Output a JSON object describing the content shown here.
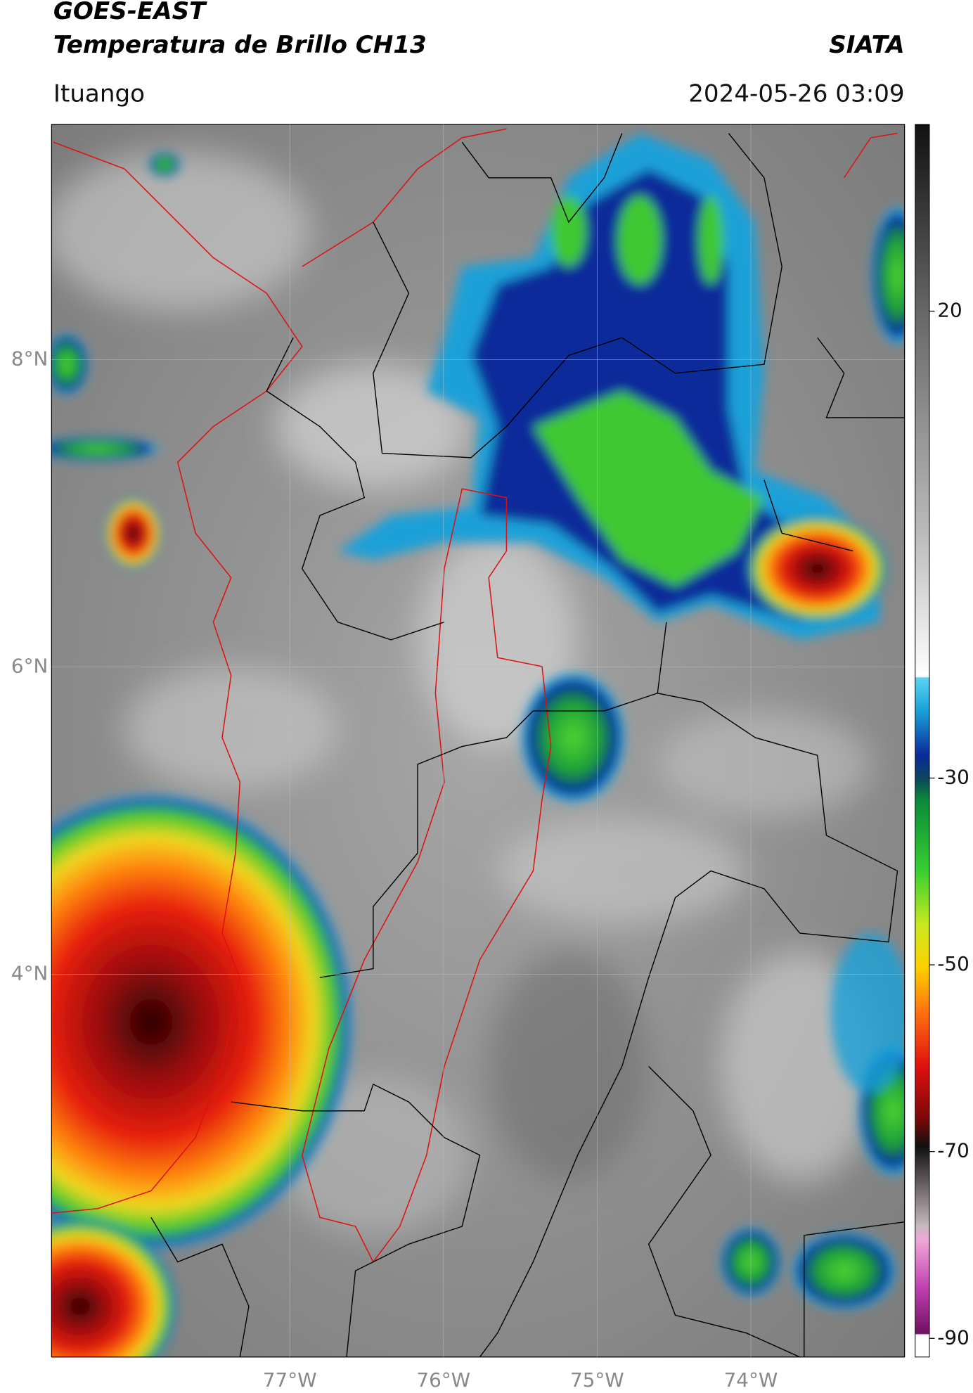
{
  "header": {
    "title_line1": "GOES-EAST",
    "title_line2": "Temperatura de Brillo CH13",
    "organization": "SIATA",
    "location": "Ituango",
    "timestamp": "2024-05-26 03:09"
  },
  "map": {
    "xlim": [
      -78.55,
      -73.0
    ],
    "ylim": [
      1.51,
      9.53
    ],
    "xticks": [
      {
        "value": -77,
        "label": "77°W"
      },
      {
        "value": -76,
        "label": "76°W"
      },
      {
        "value": -75,
        "label": "75°W"
      },
      {
        "value": -74,
        "label": "74°W"
      }
    ],
    "yticks": [
      {
        "value": 8,
        "label": "8°N"
      },
      {
        "value": 6,
        "label": "6°N"
      },
      {
        "value": 4,
        "label": "4°N"
      }
    ],
    "grid": true
  },
  "colorbar": {
    "lim": [
      -92,
      40
    ],
    "ticks": [
      20,
      -30,
      -50,
      -70,
      -90
    ]
  }
}
